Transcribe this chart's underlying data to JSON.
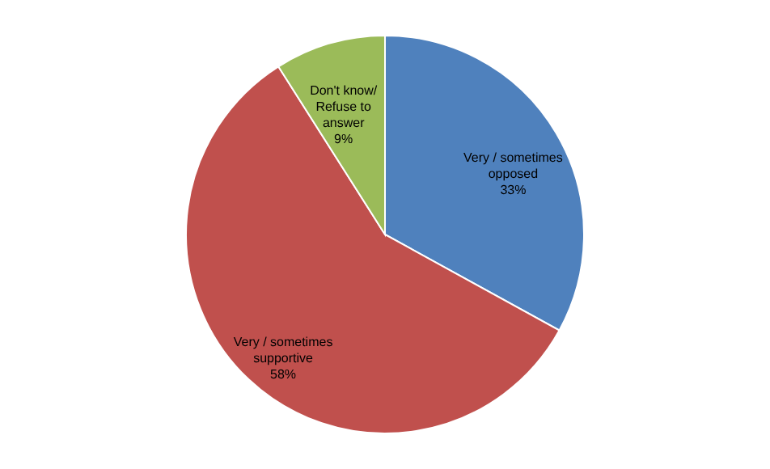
{
  "chart_data": {
    "type": "pie",
    "categories": [
      "Very / sometimes\nopposed",
      "Very / sometimes\nsupportive",
      "Don't know/\nRefuse to\nanswer"
    ],
    "values": [
      33,
      58,
      9
    ],
    "colors": [
      "#4f81bd",
      "#c0504d",
      "#9bbb59"
    ],
    "value_labels": [
      "33%",
      "58%",
      "9%"
    ],
    "legend": false
  }
}
